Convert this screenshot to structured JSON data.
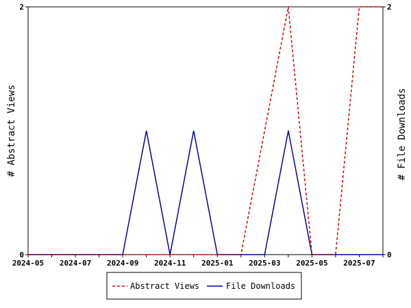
{
  "chart_data": {
    "type": "line",
    "title": "",
    "x": [
      "2024-05",
      "2024-06",
      "2024-07",
      "2024-08",
      "2024-09",
      "2024-10",
      "2024-11",
      "2024-12",
      "2025-01",
      "2025-02",
      "2025-03",
      "2025-04",
      "2025-05",
      "2025-06",
      "2025-07",
      "2025-08"
    ],
    "x_tick_labels": [
      "2024-05",
      "2024-07",
      "2024-09",
      "2024-11",
      "2025-01",
      "2025-03",
      "2025-05",
      "2025-07"
    ],
    "series": [
      {
        "name": "Abstract Views",
        "axis": "left",
        "color": "#cc0000",
        "dash": "dashed",
        "values": [
          0,
          0,
          0,
          0,
          0,
          0,
          0,
          0,
          0,
          0,
          1,
          2,
          0,
          0,
          2,
          2
        ]
      },
      {
        "name": "File Downloads",
        "axis": "right",
        "color": "#000099",
        "dash": "solid",
        "values": [
          0,
          0,
          0,
          0,
          0,
          1,
          0,
          1,
          0,
          0,
          0,
          1,
          0,
          0,
          0,
          0
        ]
      }
    ],
    "ylabel_left": "# Abstract Views",
    "ylabel_right": "# File Downloads",
    "ylim_left": [
      0,
      2
    ],
    "ylim_right": [
      0,
      2
    ],
    "y_ticks_left": [
      "0",
      "2"
    ],
    "y_ticks_right": [
      "0",
      "2"
    ],
    "grid": false,
    "legend_position": "bottom-center"
  }
}
